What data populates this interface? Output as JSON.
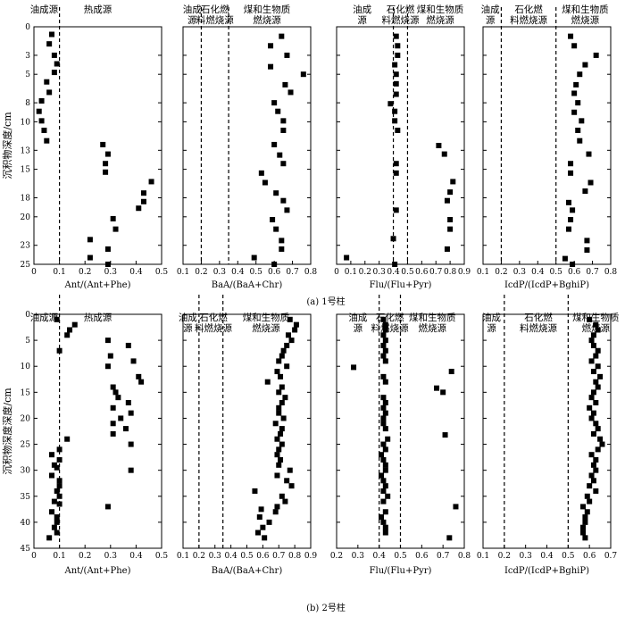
{
  "figure": {
    "captions": [
      "(a)  1号柱",
      "(b)  2号柱"
    ]
  },
  "chart_data": [
    {
      "type": "scatter",
      "id": "a1",
      "xlabel": "Ant/(Ant+Phe)",
      "ylabel": "沉积物深度/cm",
      "xlim": [
        0,
        0.5
      ],
      "xticks": [
        0,
        0.1,
        0.2,
        0.3,
        0.4,
        0.5
      ],
      "xticklabels": [
        "0",
        "0.1",
        "0.2",
        "0.3",
        "0.4",
        "0.5"
      ],
      "ylim": [
        0,
        25
      ],
      "yticks": [
        0,
        3,
        5,
        8,
        10,
        13,
        15,
        18,
        20,
        23,
        25
      ],
      "yticklabels": [
        "0",
        "3",
        "5",
        "8",
        "10",
        "13",
        "15",
        "18",
        "20",
        "23",
        "25"
      ],
      "thresholds": [
        0.1
      ],
      "regions": [
        {
          "lines": [
            "油成源"
          ],
          "x": 0.04
        },
        {
          "lines": [
            "热成源"
          ],
          "x": 0.25
        }
      ],
      "x": [
        0.07,
        0.06,
        0.08,
        0.09,
        0.08,
        0.05,
        0.06,
        0.03,
        0.02,
        0.03,
        0.04,
        0.05,
        0.27,
        0.29,
        0.28,
        0.28,
        0.46,
        0.43,
        0.43,
        0.41,
        0.31,
        0.32,
        0.22,
        0.29,
        0.22,
        0.29
      ],
      "y": [
        0.8,
        1.8,
        3.0,
        3.9,
        4.8,
        5.8,
        6.9,
        7.8,
        8.9,
        9.9,
        10.9,
        12.0,
        12.4,
        13.4,
        14.4,
        15.3,
        16.3,
        17.5,
        18.4,
        19.1,
        20.2,
        21.3,
        22.4,
        23.4,
        24.3,
        25.0
      ]
    },
    {
      "type": "scatter",
      "id": "a2",
      "xlabel": "BaA/(BaA+Chr)",
      "xlim": [
        0.1,
        0.8
      ],
      "xticks": [
        0.1,
        0.2,
        0.3,
        0.4,
        0.5,
        0.6,
        0.7,
        0.8
      ],
      "xticklabels": [
        "0.1",
        "0.2",
        "0.3",
        "0.4",
        "0.5",
        "0.6",
        "0.7",
        "0.8"
      ],
      "ylim": [
        0,
        25
      ],
      "yticks": [
        0,
        3,
        5,
        8,
        10,
        13,
        15,
        18,
        20,
        23,
        25
      ],
      "thresholds": [
        0.2,
        0.35
      ],
      "regions": [
        {
          "lines": [
            "油成",
            "源"
          ],
          "x": 0.15
        },
        {
          "lines": [
            "石化燃",
            "料燃烧源"
          ],
          "x": 0.275
        },
        {
          "lines": [
            "煤和生物质",
            "燃烧源"
          ],
          "x": 0.56
        }
      ],
      "x": [
        0.64,
        0.58,
        0.67,
        0.58,
        0.76,
        0.66,
        0.69,
        0.6,
        0.62,
        0.65,
        0.65,
        0.6,
        0.63,
        0.65,
        0.53,
        0.55,
        0.61,
        0.65,
        0.67,
        0.59,
        0.61,
        0.64,
        0.64,
        0.49,
        0.6
      ],
      "y": [
        1.0,
        2.0,
        3.0,
        4.2,
        5.0,
        6.1,
        6.9,
        8.0,
        8.9,
        9.9,
        10.9,
        12.4,
        13.5,
        14.4,
        15.4,
        16.4,
        17.5,
        18.3,
        19.3,
        20.3,
        21.3,
        22.5,
        23.4,
        24.3,
        25.0
      ]
    },
    {
      "type": "scatter",
      "id": "a3",
      "xlabel": "Flu/(Flu+Pyr)",
      "xlim": [
        0,
        0.9
      ],
      "xticks": [
        0,
        0.1,
        0.2,
        0.3,
        0.4,
        0.5,
        0.6,
        0.7,
        0.8,
        0.9
      ],
      "xticklabels": [
        "0",
        "0.1",
        "0.2",
        "0.3",
        "0.4",
        "0.5",
        "0.6",
        "0.7",
        "0.8",
        "0.9"
      ],
      "ylim": [
        0,
        25
      ],
      "yticks": [
        0,
        3,
        5,
        8,
        10,
        13,
        15,
        18,
        20,
        23,
        25
      ],
      "thresholds": [
        0.4,
        0.5
      ],
      "regions": [
        {
          "lines": [
            "油成",
            "源"
          ],
          "x": 0.18
        },
        {
          "lines": [
            "石化燃",
            "料燃烧源"
          ],
          "x": 0.45
        },
        {
          "lines": [
            "煤和生物质",
            "燃烧源"
          ],
          "x": 0.73
        }
      ],
      "x": [
        0.42,
        0.43,
        0.43,
        0.41,
        0.42,
        0.42,
        0.42,
        0.38,
        0.41,
        0.41,
        0.43,
        0.72,
        0.76,
        0.42,
        0.42,
        0.82,
        0.8,
        0.78,
        0.42,
        0.8,
        0.8,
        0.4,
        0.78,
        0.07,
        0.41
      ],
      "y": [
        1.0,
        2.0,
        3.0,
        4.0,
        5.0,
        6.0,
        7.1,
        8.1,
        8.9,
        9.9,
        10.9,
        12.5,
        13.4,
        14.4,
        15.4,
        16.3,
        17.4,
        18.3,
        19.3,
        20.3,
        21.3,
        22.3,
        23.4,
        24.3,
        25.0
      ]
    },
    {
      "type": "scatter",
      "id": "a4",
      "xlabel": "IcdP/(IcdP+BghiP)",
      "xlim": [
        0.1,
        0.8
      ],
      "xticks": [
        0.1,
        0.2,
        0.3,
        0.4,
        0.5,
        0.6,
        0.7,
        0.8
      ],
      "xticklabels": [
        "0.1",
        "0.2",
        "0.3",
        "0.4",
        "0.5",
        "0.6",
        "0.7",
        "0.8"
      ],
      "ylim": [
        0,
        25
      ],
      "yticks": [
        0,
        3,
        5,
        8,
        10,
        13,
        15,
        18,
        20,
        23,
        25
      ],
      "thresholds": [
        0.2,
        0.5
      ],
      "regions": [
        {
          "lines": [
            "油成",
            "源"
          ],
          "x": 0.14
        },
        {
          "lines": [
            "石化燃",
            "料燃烧源"
          ],
          "x": 0.35
        },
        {
          "lines": [
            "煤和生物质",
            "燃烧源"
          ],
          "x": 0.66
        }
      ],
      "x": [
        0.58,
        0.6,
        0.72,
        0.66,
        0.63,
        0.61,
        0.6,
        0.62,
        0.6,
        0.64,
        0.62,
        0.63,
        0.68,
        0.58,
        0.58,
        0.69,
        0.66,
        0.57,
        0.59,
        0.58,
        0.57,
        0.67,
        0.67,
        0.55,
        0.59
      ],
      "y": [
        1.0,
        2.0,
        3.0,
        4.0,
        5.0,
        6.1,
        7.0,
        8.0,
        9.0,
        9.9,
        10.9,
        12.0,
        13.4,
        14.4,
        15.4,
        16.4,
        17.3,
        18.5,
        19.3,
        20.3,
        21.3,
        22.5,
        23.5,
        24.4,
        25.0
      ]
    },
    {
      "type": "scatter",
      "id": "b1",
      "xlabel": "Ant/(Ant+Phe)",
      "ylabel": "沉积物深度深度/cm",
      "xlim": [
        0,
        0.5
      ],
      "xticks": [
        0,
        0.1,
        0.2,
        0.3,
        0.4,
        0.5
      ],
      "xticklabels": [
        "0",
        "0.1",
        "0.2",
        "0.3",
        "0.4",
        "0.5"
      ],
      "ylim": [
        0,
        45
      ],
      "yticks": [
        0,
        5,
        10,
        15,
        20,
        25,
        30,
        35,
        40,
        45
      ],
      "yticklabels": [
        "0",
        "5",
        "10",
        "15",
        "20",
        "25",
        "30",
        "35",
        "40",
        "45"
      ],
      "thresholds": [
        0.1
      ],
      "regions": [
        {
          "lines": [
            "油成源"
          ],
          "x": 0.04
        },
        {
          "lines": [
            "热成源"
          ],
          "x": 0.25
        }
      ],
      "x": [
        0.09,
        0.16,
        0.14,
        0.13,
        0.29,
        0.37,
        0.1,
        0.3,
        0.39,
        0.29,
        0.41,
        0.42,
        0.31,
        0.32,
        0.33,
        0.37,
        0.31,
        0.38,
        0.34,
        0.31,
        0.36,
        0.31,
        0.13,
        0.38,
        0.1,
        0.07,
        0.1,
        0.08,
        0.09,
        0.38,
        0.07,
        0.1,
        0.1,
        0.09,
        0.1,
        0.08,
        0.1,
        0.29,
        0.07,
        0.09,
        0.09,
        0.08,
        0.09,
        0.06
      ],
      "y": [
        1.0,
        2.0,
        3.0,
        4.0,
        5.0,
        6.0,
        7.0,
        8.0,
        9.0,
        10.0,
        12.0,
        13.0,
        14.0,
        15.0,
        16.0,
        17.0,
        18.0,
        19.0,
        20.0,
        21.0,
        22.0,
        23.0,
        24.0,
        25.0,
        26.0,
        27.0,
        28.0,
        29.0,
        29.5,
        30.0,
        31.0,
        32.0,
        33.0,
        34.0,
        35.0,
        36.0,
        36.5,
        37.0,
        38.0,
        39.0,
        40.0,
        41.0,
        42.0,
        43.0
      ]
    },
    {
      "type": "scatter",
      "id": "b2",
      "xlabel": "BaA/(BaA+Chr)",
      "xlim": [
        0.1,
        0.9
      ],
      "xticks": [
        0.1,
        0.2,
        0.3,
        0.4,
        0.5,
        0.6,
        0.7,
        0.8,
        0.9
      ],
      "xticklabels": [
        "0.1",
        "0.2",
        "0.3",
        "0.4",
        "0.5",
        "0.6",
        "0.7",
        "0.8",
        "0.9"
      ],
      "ylim": [
        0,
        45
      ],
      "yticks": [
        0,
        5,
        10,
        15,
        20,
        25,
        30,
        35,
        40,
        45
      ],
      "thresholds": [
        0.2,
        0.35
      ],
      "regions": [
        {
          "lines": [
            "油成",
            "源"
          ],
          "x": 0.13
        },
        {
          "lines": [
            "石化燃",
            "料燃烧源"
          ],
          "x": 0.29
        },
        {
          "lines": [
            "煤和生物质",
            "燃烧源"
          ],
          "x": 0.62
        }
      ],
      "x": [
        0.77,
        0.81,
        0.8,
        0.76,
        0.78,
        0.75,
        0.73,
        0.72,
        0.7,
        0.75,
        0.69,
        0.71,
        0.63,
        0.72,
        0.7,
        0.74,
        0.72,
        0.7,
        0.7,
        0.73,
        0.68,
        0.72,
        0.71,
        0.69,
        0.72,
        0.7,
        0.69,
        0.71,
        0.7,
        0.77,
        0.69,
        0.75,
        0.78,
        0.55,
        0.72,
        0.74,
        0.69,
        0.59,
        0.68,
        0.58,
        0.64,
        0.6,
        0.57,
        0.61
      ],
      "y": [
        1.0,
        2.0,
        3.0,
        4.0,
        5.0,
        6.0,
        7.0,
        8.0,
        9.0,
        10.0,
        11.0,
        12.0,
        13.0,
        14.0,
        15.0,
        16.0,
        17.0,
        18.0,
        19.0,
        20.0,
        21.0,
        22.0,
        23.0,
        24.0,
        25.0,
        26.0,
        27.0,
        28.0,
        29.0,
        30.0,
        31.0,
        32.0,
        33.0,
        34.0,
        35.0,
        36.0,
        37.0,
        37.5,
        38.0,
        39.0,
        40.0,
        41.0,
        42.0,
        43.0
      ]
    },
    {
      "type": "scatter",
      "id": "b3",
      "xlabel": "Flu/(Flu+Pyr)",
      "xlim": [
        0.2,
        0.8
      ],
      "xticks": [
        0.2,
        0.3,
        0.4,
        0.5,
        0.6,
        0.7,
        0.8
      ],
      "xticklabels": [
        "0.2",
        "0.3",
        "0.4",
        "0.5",
        "0.6",
        "0.7",
        "0.8"
      ],
      "ylim": [
        0,
        45
      ],
      "yticks": [
        0,
        5,
        10,
        15,
        20,
        25,
        30,
        35,
        40,
        45
      ],
      "thresholds": [
        0.4,
        0.5
      ],
      "regions": [
        {
          "lines": [
            "油成",
            "源"
          ],
          "x": 0.3
        },
        {
          "lines": [
            "石化燃",
            "料燃烧源"
          ],
          "x": 0.45
        },
        {
          "lines": [
            "煤和生物质",
            "燃烧源"
          ],
          "x": 0.65
        }
      ],
      "x": [
        0.42,
        0.43,
        0.43,
        0.42,
        0.43,
        0.42,
        0.43,
        0.42,
        0.43,
        0.28,
        0.74,
        0.42,
        0.43,
        0.67,
        0.7,
        0.42,
        0.43,
        0.42,
        0.43,
        0.42,
        0.42,
        0.43,
        0.71,
        0.44,
        0.42,
        0.43,
        0.41,
        0.42,
        0.43,
        0.43,
        0.41,
        0.42,
        0.43,
        0.42,
        0.44,
        0.42,
        0.76,
        0.43,
        0.41,
        0.42,
        0.43,
        0.43,
        0.73
      ],
      "y": [
        1.0,
        2.0,
        3.0,
        4.0,
        5.0,
        6.0,
        7.0,
        8.0,
        9.0,
        10.2,
        11.0,
        12.0,
        13.0,
        14.2,
        15.0,
        16.0,
        17.0,
        18.0,
        19.0,
        20.0,
        21.0,
        22.0,
        23.2,
        24.0,
        25.0,
        26.0,
        27.0,
        28.0,
        29.0,
        30.0,
        31.0,
        32.0,
        33.0,
        34.0,
        35.0,
        36.0,
        37.0,
        38.0,
        39.0,
        40.0,
        41.0,
        42.0,
        43.0
      ]
    },
    {
      "type": "scatter",
      "id": "b4",
      "xlabel": "IcdP/(IcdP+BghiP)",
      "xlim": [
        0.1,
        0.7
      ],
      "xticks": [
        0.1,
        0.2,
        0.3,
        0.4,
        0.5,
        0.6,
        0.7
      ],
      "xticklabels": [
        "0.1",
        "0.2",
        "0.3",
        "0.4",
        "0.5",
        "0.6",
        "0.7"
      ],
      "ylim": [
        0,
        45
      ],
      "yticks": [
        0,
        5,
        10,
        15,
        20,
        25,
        30,
        35,
        40,
        45
      ],
      "thresholds": [
        0.2,
        0.5
      ],
      "regions": [
        {
          "lines": [
            "油成",
            "源"
          ],
          "x": 0.14
        },
        {
          "lines": [
            "石化燃",
            "料燃烧源"
          ],
          "x": 0.36
        },
        {
          "lines": [
            "煤和生物质",
            "燃烧源"
          ],
          "x": 0.63
        }
      ],
      "x": [
        0.6,
        0.63,
        0.64,
        0.62,
        0.61,
        0.62,
        0.64,
        0.63,
        0.61,
        0.64,
        0.62,
        0.65,
        0.63,
        0.64,
        0.62,
        0.61,
        0.63,
        0.6,
        0.62,
        0.61,
        0.63,
        0.64,
        0.62,
        0.65,
        0.66,
        0.64,
        0.61,
        0.63,
        0.62,
        0.63,
        0.61,
        0.62,
        0.6,
        0.63,
        0.59,
        0.6,
        0.57,
        0.59,
        0.58,
        0.58,
        0.57,
        0.57,
        0.58
      ],
      "y": [
        1.0,
        2.0,
        3.0,
        4.0,
        5.0,
        6.0,
        7.0,
        8.0,
        9.0,
        10.0,
        11.0,
        12.0,
        13.0,
        14.0,
        15.0,
        16.0,
        17.0,
        18.0,
        19.0,
        20.0,
        21.0,
        22.0,
        23.0,
        24.0,
        25.0,
        26.0,
        27.0,
        28.0,
        29.0,
        30.0,
        31.0,
        32.0,
        33.0,
        34.0,
        35.0,
        36.0,
        37.0,
        38.0,
        39.0,
        40.0,
        41.0,
        42.0,
        43.0
      ]
    }
  ]
}
